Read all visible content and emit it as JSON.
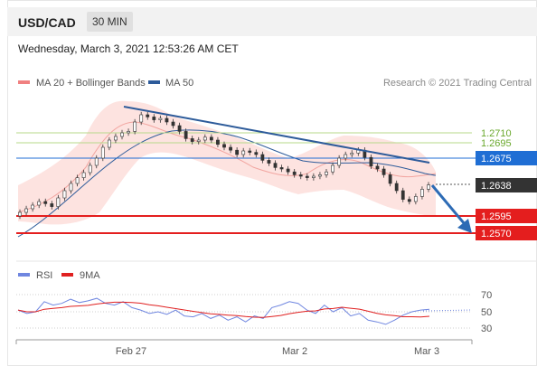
{
  "header": {
    "symbol": "USD/CAD",
    "timeframe": "30 MIN",
    "date": "Wednesday, March 3, 2021 12:53:26 AM CET"
  },
  "legend": {
    "bb_label": "MA 20 + Bollinger Bands",
    "bb_color": "#f08080",
    "ma50_label": "MA 50",
    "ma50_color": "#2d5b9a",
    "credit": "Research © 2021 Trading Central"
  },
  "rsi_legend": {
    "rsi_label": "RSI",
    "rsi_color": "#6f86e0",
    "ma_label": "9MA",
    "ma_color": "#e02020"
  },
  "levels": [
    {
      "value": "1.2710",
      "kind": "resistance",
      "color": "#8cbf3c"
    },
    {
      "value": "1.2695",
      "kind": "resistance",
      "color": "#8cbf3c"
    },
    {
      "value": "1.2675",
      "kind": "pivot",
      "color": "#1f6ed4"
    },
    {
      "value": "1.2638",
      "kind": "last",
      "color": "#333333"
    },
    {
      "value": "1.2595",
      "kind": "support",
      "color": "#e41e1e"
    },
    {
      "value": "1.2570",
      "kind": "support",
      "color": "#e41e1e"
    }
  ],
  "rsi_levels": [
    "70",
    "50",
    "30"
  ],
  "x_labels": [
    "Feb 27",
    "Mar 2",
    "Mar 3"
  ],
  "chart_data": {
    "type": "candlestick",
    "title": "USD/CAD 30 MIN",
    "close_series": [
      1.26,
      1.2605,
      1.261,
      1.2615,
      1.2612,
      1.2608,
      1.262,
      1.263,
      1.264,
      1.2648,
      1.2655,
      1.2665,
      1.2675,
      1.269,
      1.27,
      1.2705,
      1.271,
      1.2712,
      1.2725,
      1.2735,
      1.2732,
      1.2728,
      1.273,
      1.2725,
      1.272,
      1.2712,
      1.2702,
      1.2698,
      1.27,
      1.2704,
      1.27,
      1.2694,
      1.269,
      1.2686,
      1.268,
      1.2685,
      1.2683,
      1.268,
      1.2672,
      1.2668,
      1.2662,
      1.266,
      1.2656,
      1.2652,
      1.265,
      1.2648,
      1.265,
      1.2652,
      1.2656,
      1.2665,
      1.2675,
      1.268,
      1.2682,
      1.2686,
      1.2676,
      1.2664,
      1.266,
      1.2652,
      1.264,
      1.263,
      1.2618,
      1.2615,
      1.2622,
      1.2632,
      1.2638
    ],
    "bb_upper_tail": 1.2665,
    "ma50_tail": 1.2658,
    "trendline": "descending resistance",
    "forecast": "down toward 1.2595 then 1.2570",
    "rsi_series": [
      52,
      48,
      50,
      62,
      58,
      60,
      65,
      61,
      63,
      66,
      60,
      58,
      62,
      55,
      52,
      48,
      50,
      47,
      52,
      45,
      44,
      48,
      42,
      46,
      40,
      44,
      38,
      45,
      42,
      55,
      58,
      62,
      60,
      52,
      48,
      58,
      50,
      55,
      45,
      48,
      40,
      38,
      35,
      40,
      46,
      50,
      52,
      53
    ]
  }
}
